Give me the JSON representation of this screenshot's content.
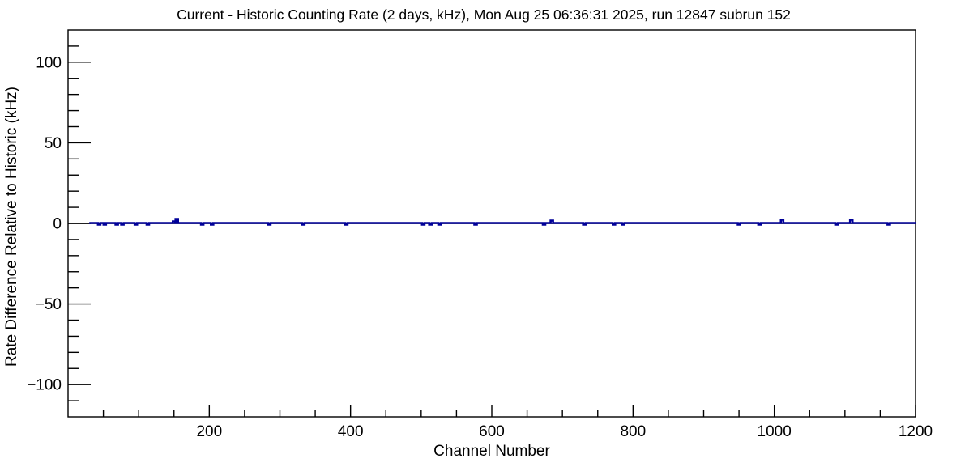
{
  "window": {
    "background": "#ffffff"
  },
  "chart_data": {
    "type": "line",
    "title": "Current - Historic Counting Rate (2 days, kHz), Mon Aug 25 06:36:31 2025, run 12847 subrun 152",
    "xlabel": "Channel Number",
    "ylabel": "Rate Difference Relative to Historic (kHz)",
    "xlim": [
      0,
      1200
    ],
    "ylim": [
      -120,
      120
    ],
    "x_major_ticks": [
      200,
      400,
      600,
      800,
      1000,
      1200
    ],
    "x_minor_step": 50,
    "y_major_ticks": [
      -100,
      -50,
      0,
      50,
      100
    ],
    "y_minor_step": 10,
    "grid": false,
    "legend": "none",
    "line_color": "#000099",
    "zero_line_color": "#000000",
    "frame_color": "#000000",
    "baseline_kHz": 0,
    "data_start_channel": 30,
    "data_end_channel": 1200,
    "series": [
      {
        "name": "rate-difference",
        "description": "flat at 0 kHz with small spikes",
        "spikes": [
          {
            "channel": 44,
            "kHz": -1
          },
          {
            "channel": 52,
            "kHz": -1
          },
          {
            "channel": 69,
            "kHz": -1
          },
          {
            "channel": 77,
            "kHz": -1
          },
          {
            "channel": 96,
            "kHz": -1
          },
          {
            "channel": 113,
            "kHz": -1
          },
          {
            "channel": 150,
            "kHz": 1
          },
          {
            "channel": 154,
            "kHz": 2.5
          },
          {
            "channel": 190,
            "kHz": -1
          },
          {
            "channel": 204,
            "kHz": -1
          },
          {
            "channel": 285,
            "kHz": -1
          },
          {
            "channel": 333,
            "kHz": -1
          },
          {
            "channel": 394,
            "kHz": -1
          },
          {
            "channel": 503,
            "kHz": -1
          },
          {
            "channel": 513,
            "kHz": -1
          },
          {
            "channel": 526,
            "kHz": -1
          },
          {
            "channel": 577,
            "kHz": -1
          },
          {
            "channel": 674,
            "kHz": -1
          },
          {
            "channel": 685,
            "kHz": 1.5
          },
          {
            "channel": 731,
            "kHz": -1
          },
          {
            "channel": 773,
            "kHz": -1
          },
          {
            "channel": 786,
            "kHz": -1
          },
          {
            "channel": 950,
            "kHz": -1
          },
          {
            "channel": 979,
            "kHz": -1
          },
          {
            "channel": 1011,
            "kHz": 2
          },
          {
            "channel": 1088,
            "kHz": -1
          },
          {
            "channel": 1109,
            "kHz": 2
          },
          {
            "channel": 1162,
            "kHz": -1
          }
        ]
      }
    ]
  }
}
